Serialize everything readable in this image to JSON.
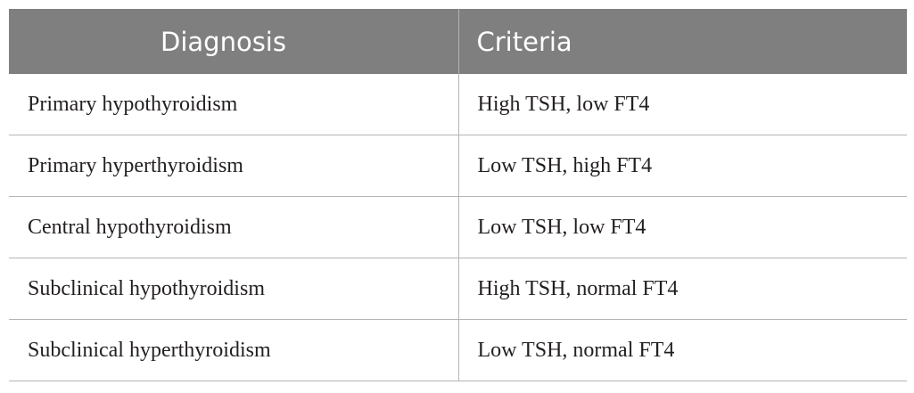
{
  "table": {
    "headers": [
      "Diagnosis",
      "Criteria"
    ],
    "rows": [
      [
        "Primary hypothyroidism",
        "High TSH, low FT4"
      ],
      [
        "Primary hyperthyroidism",
        "Low TSH, high FT4"
      ],
      [
        "Central hypothyroidism",
        "Low TSH, low FT4"
      ],
      [
        "Subclinical hypothyroidism",
        "High TSH, normal FT4"
      ],
      [
        "Subclinical hyperthyroidism",
        "Low TSH, normal FT4"
      ]
    ]
  },
  "colors": {
    "header_bg": "#7f7f7f",
    "header_text": "#ffffff",
    "body_text": "#231f20",
    "rule": "#b5b5b5"
  }
}
